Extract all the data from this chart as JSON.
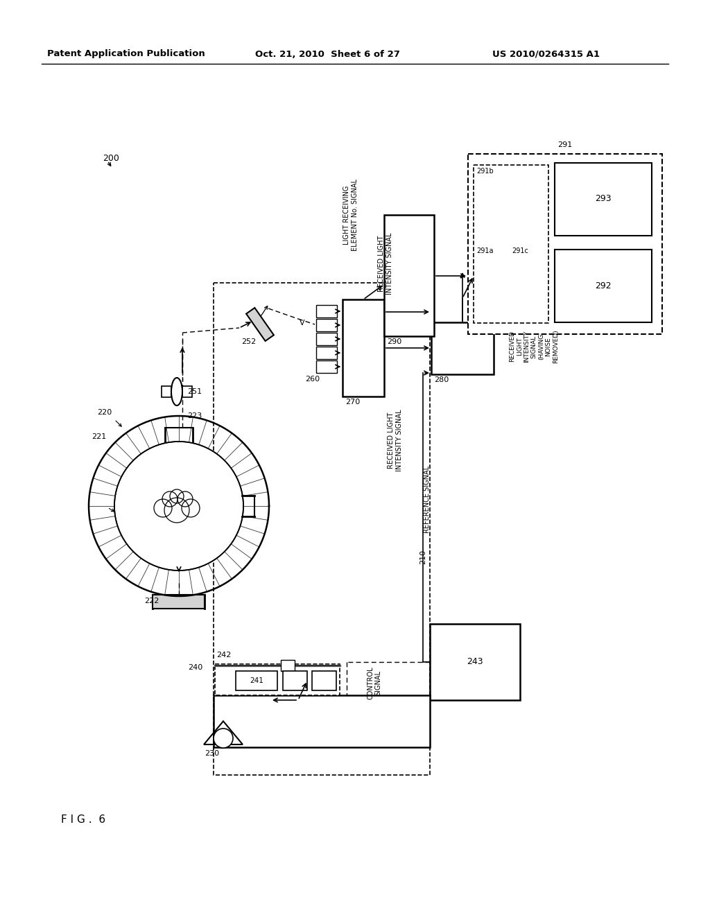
{
  "title_left": "Patent Application Publication",
  "title_mid": "Oct. 21, 2010  Sheet 6 of 27",
  "title_right": "US 2010/0264315 A1",
  "fig_label": "F I G .  6",
  "background": "#ffffff"
}
